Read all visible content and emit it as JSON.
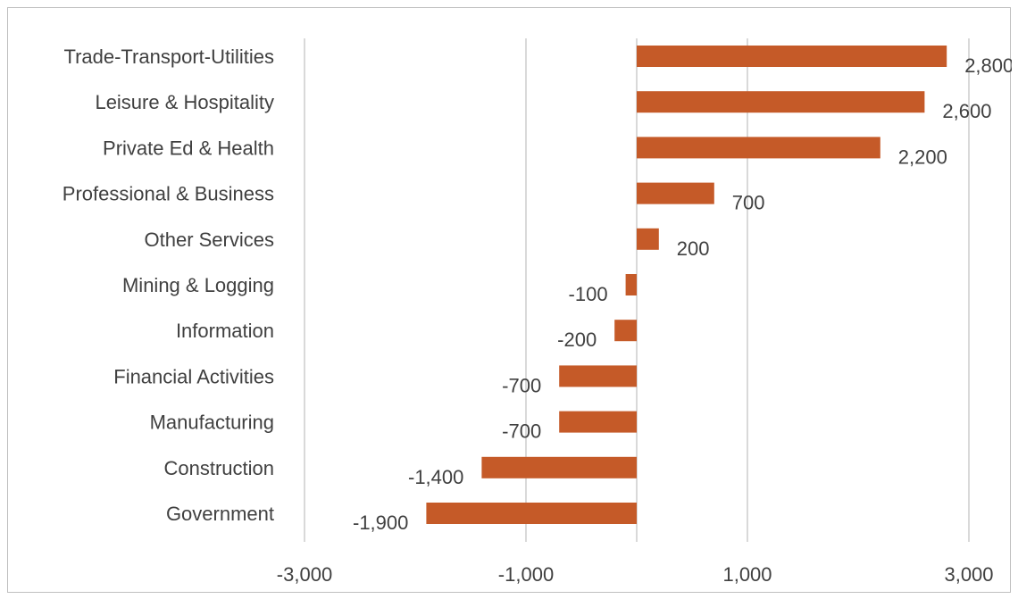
{
  "chart_data": {
    "type": "bar",
    "orientation": "horizontal",
    "title": "",
    "xlabel": "",
    "ylabel": "",
    "categories": [
      "Trade-Transport-Utilities",
      "Leisure & Hospitality",
      "Private Ed & Health",
      "Professional & Business",
      "Other Services",
      "Mining & Logging",
      "Information",
      "Financial Activities",
      "Manufacturing",
      "Construction",
      "Government"
    ],
    "values": [
      2800,
      2600,
      2200,
      700,
      200,
      -100,
      -200,
      -700,
      -700,
      -1400,
      -1900
    ],
    "value_labels": [
      "2,800",
      "2,600",
      "2,200",
      "700",
      "200",
      "-100",
      "-200",
      "-700",
      "-700",
      "-1,400",
      "-1,900"
    ],
    "xlim": [
      -3000,
      3000
    ],
    "xticks": [
      -3000,
      -1000,
      1000,
      3000
    ],
    "xtick_labels": [
      "-3,000",
      "-1,000",
      "1,000",
      "3,000"
    ],
    "grid": true,
    "legend": "none",
    "bar_color": "#c55a28",
    "text_color": "#404040",
    "grid_color": "#d9d9d9",
    "border_color": "#bfbfbf"
  }
}
